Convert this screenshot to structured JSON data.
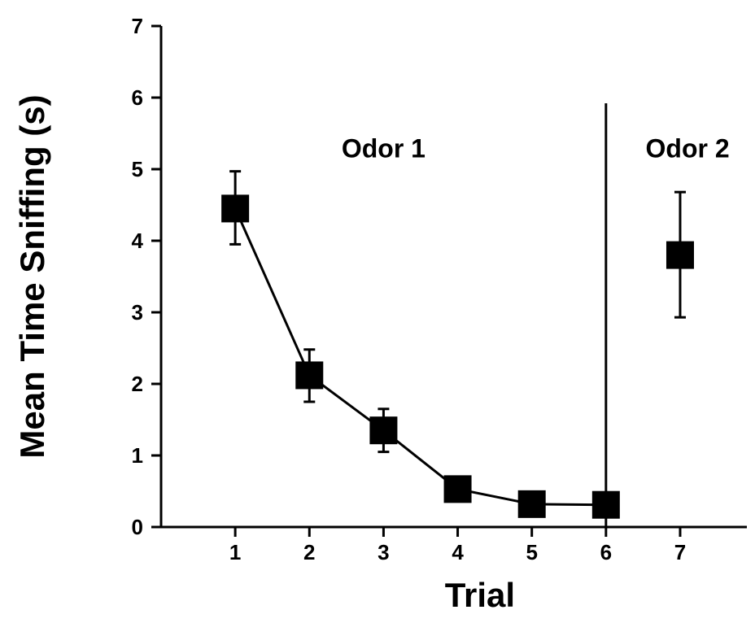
{
  "chart_data": {
    "type": "line",
    "title": "",
    "xlabel": "Trial",
    "ylabel": "Mean Time Sniffing (s)",
    "xlim": [
      0,
      7.9
    ],
    "ylim": [
      0,
      7
    ],
    "x_ticks": [
      1,
      2,
      3,
      4,
      5,
      6,
      7
    ],
    "y_ticks": [
      0,
      1,
      2,
      3,
      4,
      5,
      6,
      7
    ],
    "grid": false,
    "series": [
      {
        "points": [
          {
            "x": 1,
            "y": 4.45,
            "err_low": 3.95,
            "err_high": 4.97
          },
          {
            "x": 2,
            "y": 2.12,
            "err_low": 1.75,
            "err_high": 2.48
          },
          {
            "x": 3,
            "y": 1.35,
            "err_low": 1.05,
            "err_high": 1.65
          },
          {
            "x": 4,
            "y": 0.53,
            "err_low": 0.4,
            "err_high": 0.66
          },
          {
            "x": 5,
            "y": 0.32,
            "err_low": 0.32,
            "err_high": 0.32
          },
          {
            "x": 6,
            "y": 0.31,
            "err_low": 0.31,
            "err_high": 0.31
          }
        ],
        "connected": true
      },
      {
        "points": [
          {
            "x": 7,
            "y": 3.8,
            "err_low": 2.93,
            "err_high": 4.68
          }
        ],
        "connected": false
      }
    ],
    "annotations": [
      {
        "text": "Odor 1",
        "x": 3.0,
        "y": 5.3
      },
      {
        "text": "Odor 2",
        "x": 7.1,
        "y": 5.3
      }
    ],
    "divider": {
      "x": 6,
      "y_top": 5.92
    },
    "marker_color": "#000000"
  }
}
